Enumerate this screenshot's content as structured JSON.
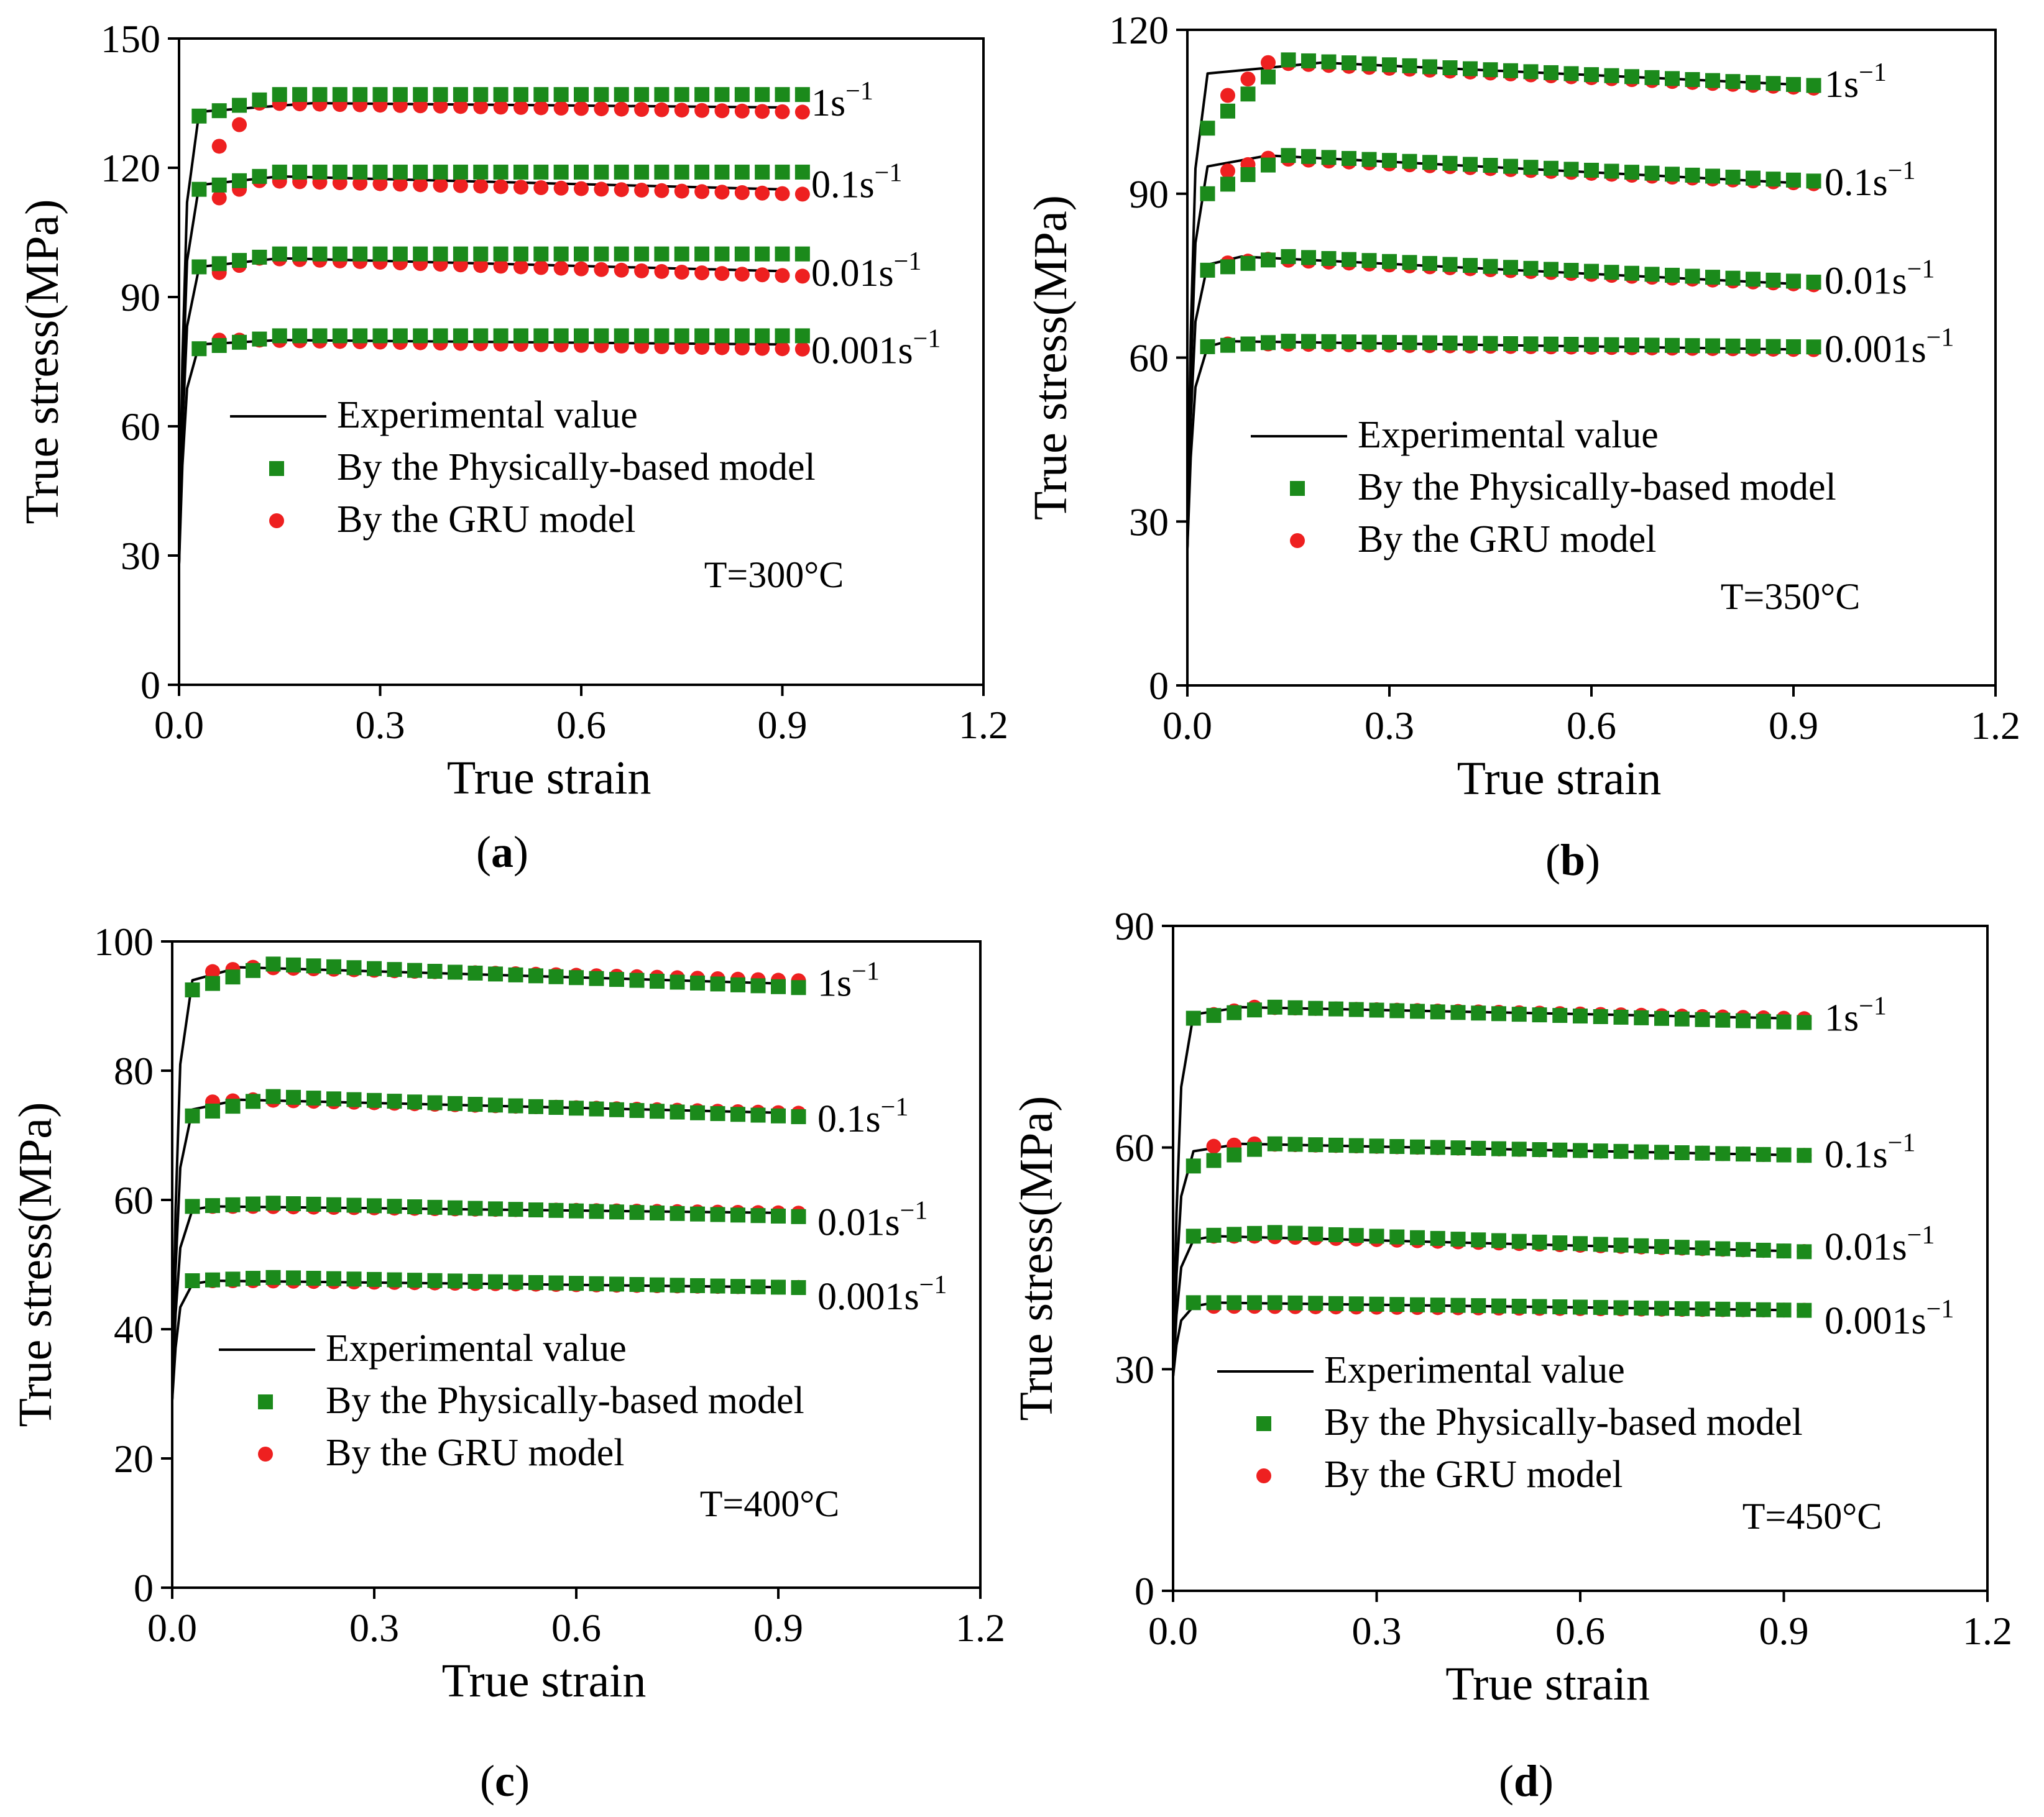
{
  "colors": {
    "experimental": "#000000",
    "physical": "#1b8a1b",
    "gru": "#ee2020"
  },
  "legend": {
    "experimental": "Experimental value",
    "physical": "By the  Physically-based model",
    "gru": "By the GRU model"
  },
  "chart_data": [
    {
      "type": "line",
      "panel_label": "a",
      "temperature_label": "T=300°C",
      "xlabel": "True strain",
      "ylabel": "True stress(MPa)",
      "xlim": [
        0,
        1.2
      ],
      "ylim": [
        0,
        150
      ],
      "xticks": [
        "0.0",
        "0.3",
        "0.6",
        "0.9",
        "1.2"
      ],
      "yticks": [
        "0",
        "30",
        "60",
        "90",
        "120",
        "150"
      ],
      "ytick_values": [
        0,
        30,
        60,
        90,
        120,
        150
      ],
      "grid": false,
      "legend_position": "center-left",
      "rates": [
        {
          "label": "1s",
          "sup": "−1",
          "label_y": 135,
          "experimental": {
            "start": 28,
            "yield": 133,
            "peak_strain": 0.2,
            "peak": 135,
            "end": 134
          },
          "physical": {
            "first": 132,
            "peak": 137,
            "end": 137
          },
          "gru": {
            "first": 120,
            "peak": 135,
            "end": 133
          }
        },
        {
          "label": "0.1s",
          "sup": "−1",
          "label_y": 116,
          "experimental": {
            "start": 28,
            "yield": 116,
            "peak_strain": 0.15,
            "peak": 118,
            "end": 115
          },
          "physical": {
            "first": 115,
            "peak": 119,
            "end": 119
          },
          "gru": {
            "first": 111,
            "peak": 117,
            "end": 114
          }
        },
        {
          "label": "0.01s",
          "sup": "−1",
          "label_y": 95.5,
          "experimental": {
            "start": 28,
            "yield": 97,
            "peak_strain": 0.15,
            "peak": 99,
            "end": 96
          },
          "physical": {
            "first": 97,
            "peak": 100,
            "end": 100
          },
          "gru": {
            "first": 94,
            "peak": 99,
            "end": 95
          }
        },
        {
          "label": "0.001s",
          "sup": "−1",
          "label_y": 77.5,
          "experimental": {
            "start": 28,
            "yield": 79,
            "peak_strain": 0.15,
            "peak": 80,
            "end": 79
          },
          "physical": {
            "first": 78,
            "peak": 81,
            "end": 81
          },
          "gru": {
            "first": 80,
            "peak": 80,
            "end": 78
          }
        }
      ]
    },
    {
      "type": "line",
      "panel_label": "b",
      "temperature_label": "T=350°C",
      "xlabel": "True strain",
      "ylabel": "True stress(MPa)",
      "xlim": [
        0,
        1.2
      ],
      "ylim": [
        0,
        120
      ],
      "xticks": [
        "0.0",
        "0.3",
        "0.6",
        "0.9",
        "1.2"
      ],
      "yticks": [
        "0",
        "30",
        "60",
        "90",
        "120"
      ],
      "ytick_values": [
        0,
        30,
        60,
        90,
        120
      ],
      "grid": false,
      "legend_position": "center-left",
      "rates": [
        {
          "label": "1s",
          "sup": "−1",
          "label_y": 110,
          "experimental": {
            "start": 25,
            "yield": 112,
            "peak_strain": 0.2,
            "peak": 114,
            "end": 110
          },
          "physical": {
            "first": 102,
            "peak": 114.5,
            "end": 110
          },
          "gru": {
            "first": 105,
            "peak": 114,
            "end": 109.5
          }
        },
        {
          "label": "0.1s",
          "sup": "−1",
          "label_y": 92,
          "experimental": {
            "start": 25,
            "yield": 95,
            "peak_strain": 0.12,
            "peak": 97,
            "end": 92
          },
          "physical": {
            "first": 90,
            "peak": 97,
            "end": 92.5
          },
          "gru": {
            "first": 93,
            "peak": 96.5,
            "end": 92
          }
        },
        {
          "label": "0.01s",
          "sup": "−1",
          "label_y": 74,
          "experimental": {
            "start": 25,
            "yield": 77,
            "peak_strain": 0.08,
            "peak": 78.5,
            "end": 73.5
          },
          "physical": {
            "first": 76,
            "peak": 78.5,
            "end": 74
          },
          "gru": {
            "first": 77,
            "peak": 78,
            "end": 73.5
          }
        },
        {
          "label": "0.001s",
          "sup": "−1",
          "label_y": 61.5,
          "experimental": {
            "start": 25,
            "yield": 62,
            "peak_strain": 0.06,
            "peak": 63,
            "end": 61.5
          },
          "physical": {
            "first": 62,
            "peak": 63,
            "end": 62
          },
          "gru": {
            "first": 62.5,
            "peak": 62.5,
            "end": 61.5
          }
        }
      ]
    },
    {
      "type": "line",
      "panel_label": "c",
      "temperature_label": "T=400°C",
      "xlabel": "True strain",
      "ylabel": "True stress(MPa)",
      "xlim": [
        0,
        1.2
      ],
      "ylim": [
        0,
        100
      ],
      "xticks": [
        "0.0",
        "0.3",
        "0.6",
        "0.9",
        "1.2"
      ],
      "yticks": [
        "0",
        "20",
        "40",
        "60",
        "80",
        "100"
      ],
      "ytick_values": [
        0,
        20,
        40,
        60,
        80,
        100
      ],
      "grid": false,
      "legend_position": "center-left",
      "rates": [
        {
          "label": "1s",
          "sup": "−1",
          "label_y": 93.5,
          "experimental": {
            "start": 29,
            "yield": 94,
            "peak_strain": 0.1,
            "peak": 96,
            "end": 93.5
          },
          "physical": {
            "first": 92.5,
            "peak": 96.5,
            "end": 93
          },
          "gru": {
            "first": 95,
            "peak": 96,
            "end": 94
          }
        },
        {
          "label": "0.1s",
          "sup": "−1",
          "label_y": 72.5,
          "experimental": {
            "start": 29,
            "yield": 74,
            "peak_strain": 0.1,
            "peak": 75.5,
            "end": 73.5
          },
          "physical": {
            "first": 73,
            "peak": 76,
            "end": 73
          },
          "gru": {
            "first": 75,
            "peak": 75.5,
            "end": 73.5
          }
        },
        {
          "label": "0.01s",
          "sup": "−1",
          "label_y": 56.5,
          "experimental": {
            "start": 29,
            "yield": 58.5,
            "peak_strain": 0.06,
            "peak": 59,
            "end": 58
          },
          "physical": {
            "first": 59,
            "peak": 59.5,
            "end": 57.5
          },
          "gru": {
            "first": 59,
            "peak": 59,
            "end": 58
          }
        },
        {
          "label": "0.001s",
          "sup": "−1",
          "label_y": 45,
          "experimental": {
            "start": 29,
            "yield": 47,
            "peak_strain": 0.06,
            "peak": 47.5,
            "end": 46.5
          },
          "physical": {
            "first": 47.5,
            "peak": 48,
            "end": 46.5
          },
          "gru": {
            "first": 47.5,
            "peak": 47.5,
            "end": 46.5
          }
        }
      ]
    },
    {
      "type": "line",
      "panel_label": "d",
      "temperature_label": "T=450°C",
      "xlabel": "True strain",
      "ylabel": "True stress(MPa)",
      "xlim": [
        0,
        1.2
      ],
      "ylim": [
        0,
        90
      ],
      "xticks": [
        "0.0",
        "0.3",
        "0.6",
        "0.9",
        "1.2"
      ],
      "yticks": [
        "0",
        "30",
        "60",
        "90"
      ],
      "ytick_values": [
        0,
        30,
        60,
        90
      ],
      "grid": false,
      "legend_position": "bottom-left",
      "rates": [
        {
          "label": "1s",
          "sup": "−1",
          "label_y": 77.5,
          "experimental": {
            "start": 29,
            "yield": 78,
            "peak_strain": 0.1,
            "peak": 79,
            "end": 77.5
          },
          "physical": {
            "first": 77.5,
            "peak": 79,
            "end": 77
          },
          "gru": {
            "first": 77.5,
            "peak": 79,
            "end": 77.5
          }
        },
        {
          "label": "0.1s",
          "sup": "−1",
          "label_y": 59,
          "experimental": {
            "start": 29,
            "yield": 59.5,
            "peak_strain": 0.1,
            "peak": 60.5,
            "end": 59
          },
          "physical": {
            "first": 57.5,
            "peak": 60.5,
            "end": 59
          },
          "gru": {
            "first": 60,
            "peak": 60.5,
            "end": 59
          }
        },
        {
          "label": "0.01s",
          "sup": "−1",
          "label_y": 46.5,
          "experimental": {
            "start": 29,
            "yield": 47.5,
            "peak_strain": 0.06,
            "peak": 48,
            "end": 46
          },
          "physical": {
            "first": 48,
            "peak": 48.5,
            "end": 46
          },
          "gru": {
            "first": 48,
            "peak": 48,
            "end": 46
          }
        },
        {
          "label": "0.001s",
          "sup": "−1",
          "label_y": 36.5,
          "experimental": {
            "start": 29,
            "yield": 38.5,
            "peak_strain": 0.06,
            "peak": 39,
            "end": 38
          },
          "physical": {
            "first": 39,
            "peak": 39,
            "end": 38
          },
          "gru": {
            "first": 38.5,
            "peak": 38.5,
            "end": 38
          }
        }
      ]
    }
  ]
}
